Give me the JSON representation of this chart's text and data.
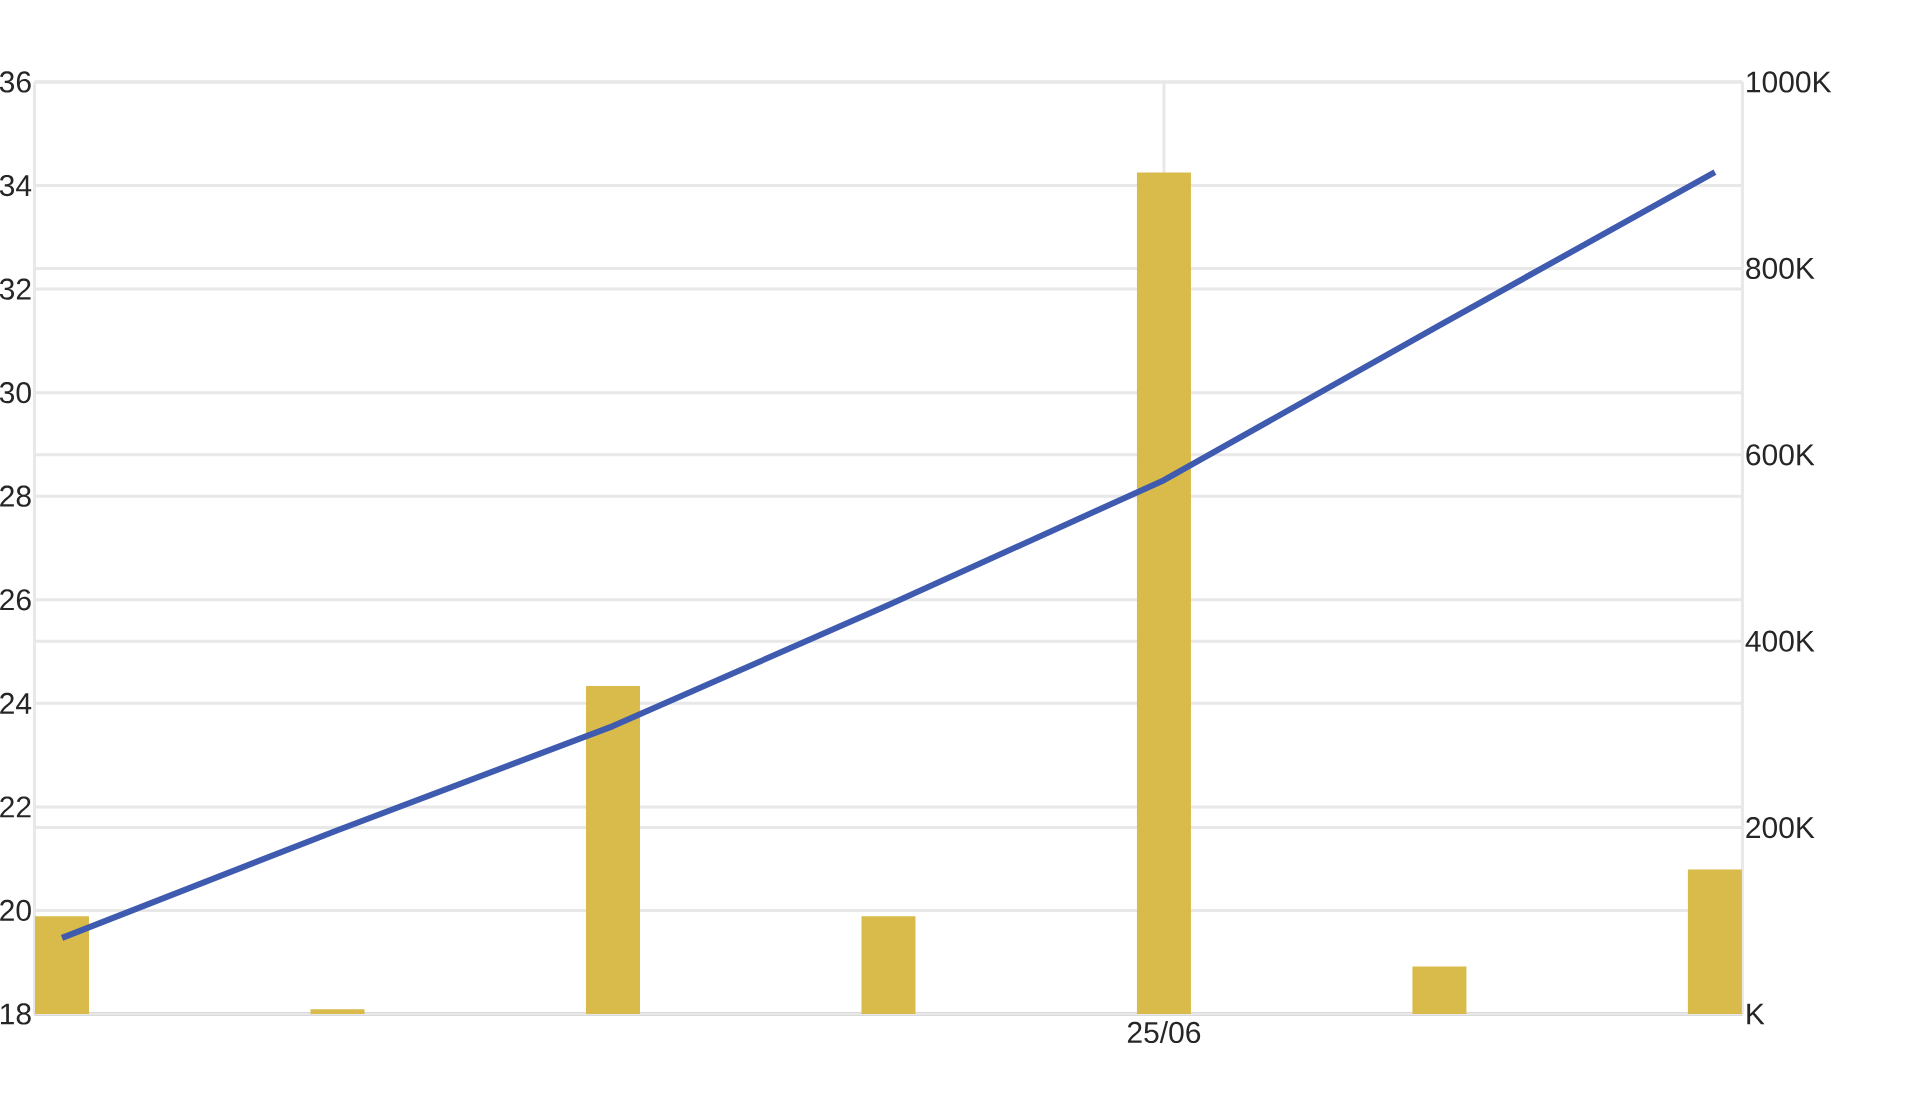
{
  "chart_data": {
    "type": "bar",
    "categories": [
      null,
      null,
      null,
      null,
      "25/06",
      null,
      null
    ],
    "series": [
      {
        "axis": "y2",
        "color": "#d8bb4a",
        "values": [
          105,
          5,
          352,
          105,
          903,
          51,
          155
        ]
      },
      {
        "type": "line",
        "color": "#3f5bb0",
        "values": [
          19.47,
          21.55,
          23.56,
          25.9,
          28.31,
          31.3,
          34.26
        ]
      }
    ],
    "ylim": [
      18,
      36
    ],
    "yticks": [
      18,
      20,
      22,
      24,
      26,
      28,
      30,
      32,
      34,
      36
    ],
    "y2lim": [
      0,
      1000
    ],
    "y2ticks": [
      {
        "value": 0,
        "label": "K"
      },
      {
        "value": 200,
        "label": "200K"
      },
      {
        "value": 400,
        "label": "400K"
      },
      {
        "value": 600,
        "label": "600K"
      },
      {
        "value": 800,
        "label": "800K"
      },
      {
        "value": 1000,
        "label": "1000K"
      }
    ],
    "grid": true
  }
}
